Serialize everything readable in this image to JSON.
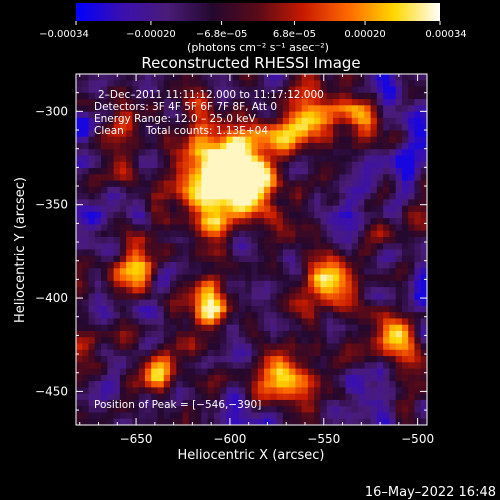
{
  "chart_data": {
    "type": "heatmap",
    "title": "Reconstructed RHESSI Image",
    "xlabel": "Heliocentric X (arcsec)",
    "ylabel": "Heliocentric Y (arcsec)",
    "xlim": [
      -682,
      -495
    ],
    "ylim": [
      -468,
      -280
    ],
    "x_ticks": [
      {
        "value": -650,
        "label": "−650"
      },
      {
        "value": -600,
        "label": "−600"
      },
      {
        "value": -550,
        "label": "−550"
      },
      {
        "value": -500,
        "label": "−500"
      }
    ],
    "y_ticks": [
      {
        "value": -300,
        "label": "−300"
      },
      {
        "value": -350,
        "label": "−350"
      },
      {
        "value": -400,
        "label": "−400"
      },
      {
        "value": -450,
        "label": "−450"
      }
    ],
    "colorbar": {
      "range": [
        -0.00034,
        0.00034
      ],
      "ticks": [
        {
          "value": -0.00034,
          "label": "−0.00034"
        },
        {
          "value": -0.0002,
          "label": "−0.00020"
        },
        {
          "value": -6.8e-05,
          "label": "−6.8e−05"
        },
        {
          "value": 6.8e-05,
          "label": "6.8e−05"
        },
        {
          "value": 0.0002,
          "label": "0.00020"
        },
        {
          "value": 0.00034,
          "label": "0.00034"
        }
      ],
      "unit": "(photons cm⁻² s⁻¹ asec⁻²)",
      "colors": [
        "#0000ff",
        "#3a0fb0",
        "#4a1c78",
        "#24082e",
        "#5a0a18",
        "#c81a00",
        "#ff6a00",
        "#ffd800",
        "#ffffff"
      ]
    },
    "annotations": [
      "2–Dec–2011 11:11:12.000 to 11:17:12.000",
      "Detectors: 3F 4F 5F 6F 7F 8F, Att 0",
      "Energy Range: 12.0 – 25.0 keV",
      "Clean",
      "Total counts: 1.13E+04"
    ],
    "peak_label": "Position of Peak = [−546,−390]",
    "peak": [
      -546,
      -390
    ],
    "timestamp": "16–May–2022 16:48"
  }
}
